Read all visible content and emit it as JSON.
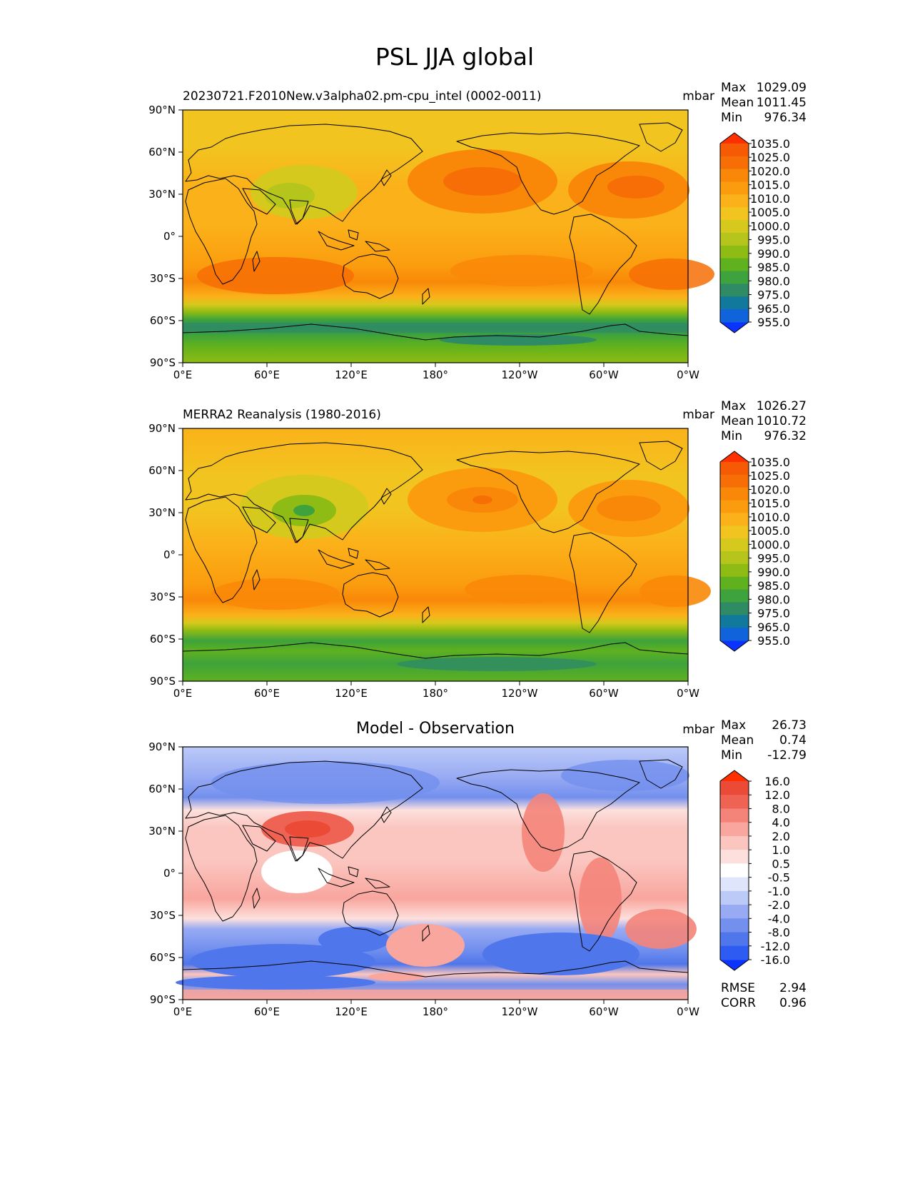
{
  "title": "PSL JJA global",
  "lon_ticks": [
    "0°E",
    "60°E",
    "120°E",
    "180°",
    "120°W",
    "60°W",
    "0°W"
  ],
  "lat_ticks": [
    "90°N",
    "60°N",
    "30°N",
    "0°",
    "30°S",
    "60°S",
    "90°S"
  ],
  "stat_labels": {
    "max": "Max",
    "mean": "Mean",
    "min": "Min"
  },
  "metrics": {
    "rmse_label": "RMSE",
    "rmse": "2.94",
    "corr_label": "CORR",
    "corr": "0.96"
  },
  "colors": {
    "abs": [
      "#0a33ff",
      "#1163db",
      "#117a9c",
      "#2f8b64",
      "#3ea33c",
      "#5fb11e",
      "#8ebb14",
      "#b6c51c",
      "#d4c91c",
      "#f2c41f",
      "#fbb21a",
      "#fb9c0e",
      "#f98808",
      "#f66e05",
      "#f65a05",
      "#ff2f00"
    ],
    "diff": [
      "#0a33ff",
      "#2e5cf2",
      "#4f76ea",
      "#7390ee",
      "#98aaf3",
      "#bccaf8",
      "#dfe6fc",
      "#ffffff",
      "#fde0dd",
      "#fbc6c0",
      "#f8a69e",
      "#f4847a",
      "#ef6355",
      "#eb4a36",
      "#ff2f00"
    ]
  },
  "chart_data": [
    {
      "type": "heatmap",
      "panel": "test",
      "title": "20230721.F2010New.v3alpha02.pm-cpu_intel (0002-0011)",
      "units": "mbar",
      "stats": {
        "max": "1029.09",
        "mean": "1011.45",
        "min": "976.34"
      },
      "levels": [
        "955.0",
        "965.0",
        "975.0",
        "980.0",
        "985.0",
        "990.0",
        "995.0",
        "1000.0",
        "1005.0",
        "1010.0",
        "1015.0",
        "1020.0",
        "1025.0",
        "1035.0"
      ],
      "xlabel": "",
      "ylabel": "",
      "xlim": [
        0,
        360
      ],
      "ylim": [
        -90,
        90
      ]
    },
    {
      "type": "heatmap",
      "panel": "reference",
      "title": "MERRA2 Reanalysis (1980-2016)",
      "units": "mbar",
      "stats": {
        "max": "1026.27",
        "mean": "1010.72",
        "min": "976.32"
      },
      "levels": [
        "955.0",
        "965.0",
        "975.0",
        "980.0",
        "985.0",
        "990.0",
        "995.0",
        "1000.0",
        "1005.0",
        "1010.0",
        "1015.0",
        "1020.0",
        "1025.0",
        "1035.0"
      ],
      "xlabel": "",
      "ylabel": "",
      "xlim": [
        0,
        360
      ],
      "ylim": [
        -90,
        90
      ]
    },
    {
      "type": "heatmap",
      "panel": "difference",
      "title": "Model - Observation",
      "units": "mbar",
      "stats": {
        "max": "26.73",
        "mean": "0.74",
        "min": "-12.79"
      },
      "levels": [
        "-16.0",
        "-12.0",
        "-8.0",
        "-4.0",
        "-2.0",
        "-1.0",
        "-0.5",
        "0.5",
        "1.0",
        "2.0",
        "4.0",
        "8.0",
        "12.0",
        "16.0"
      ],
      "xlabel": "",
      "ylabel": "",
      "xlim": [
        0,
        360
      ],
      "ylim": [
        -90,
        90
      ]
    }
  ]
}
